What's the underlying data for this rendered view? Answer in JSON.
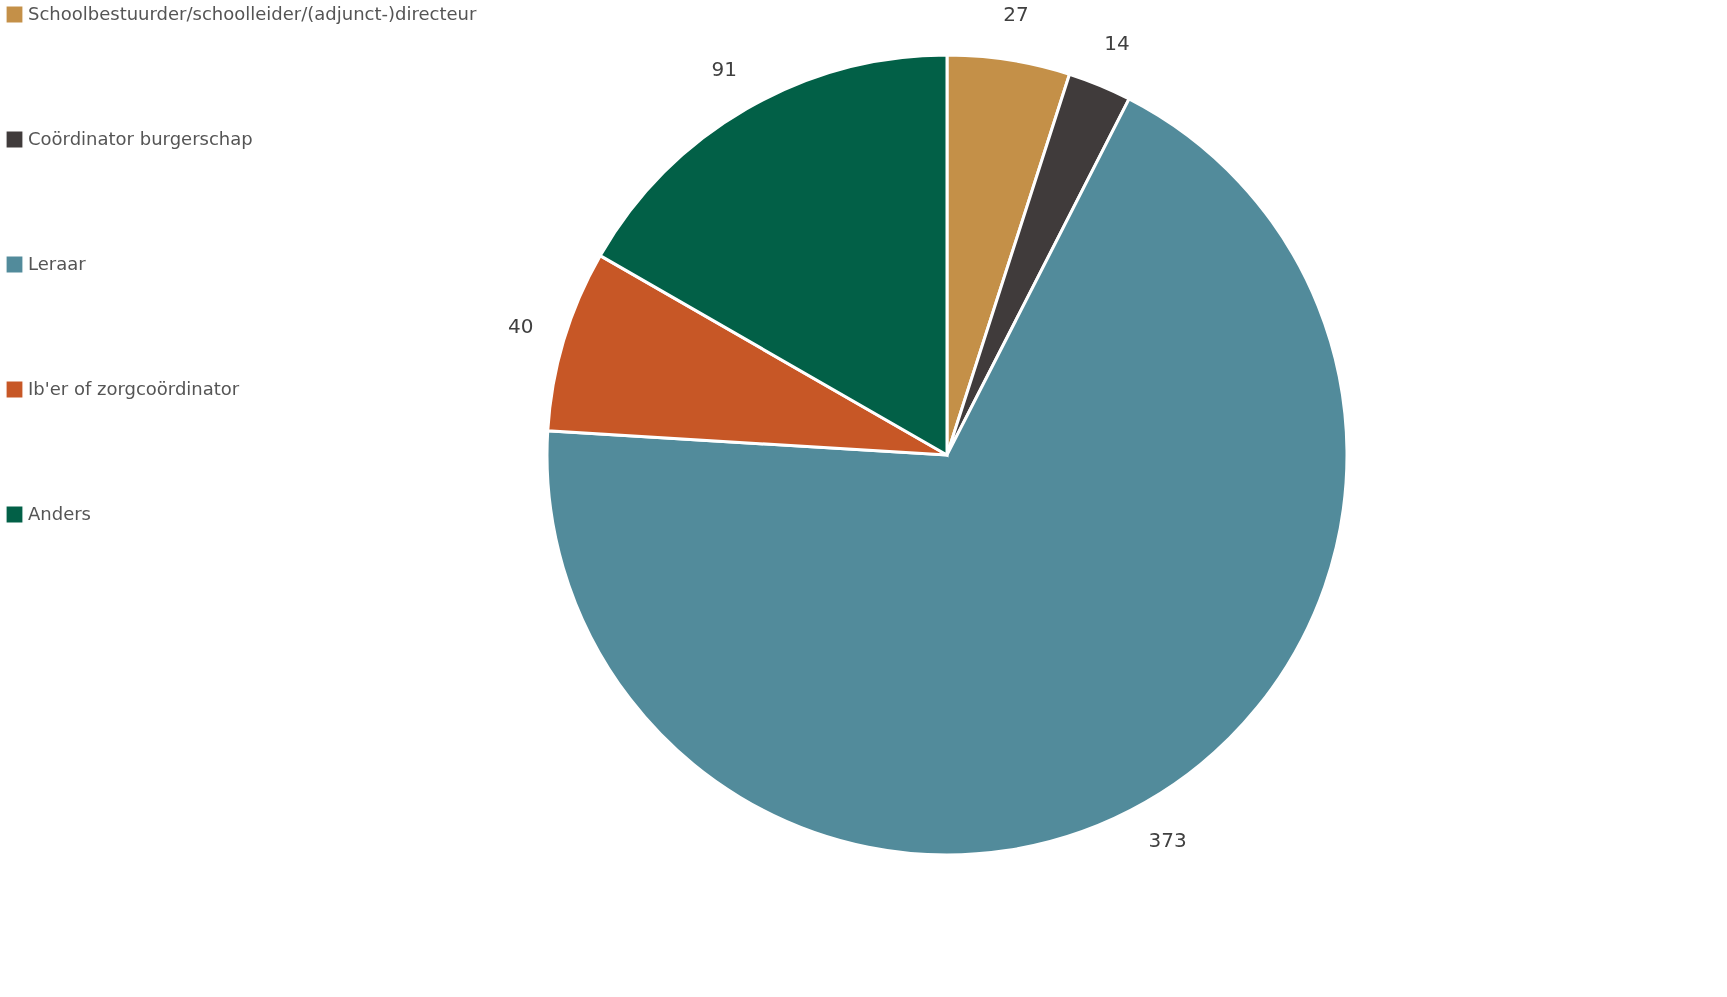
{
  "chart_data": {
    "type": "pie",
    "categories": [
      "Schoolbestuurder/schoolleider/(adjunct-)directeur",
      "Coördinator burgerschap",
      "Leraar",
      "Ib'er of zorgcoördinator",
      "Anders"
    ],
    "values": [
      27,
      14,
      373,
      40,
      91
    ],
    "colors": [
      "#c49048",
      "#403b3b",
      "#528b9b",
      "#c75726",
      "#026047"
    ],
    "data_labels": true,
    "legend": "left"
  }
}
